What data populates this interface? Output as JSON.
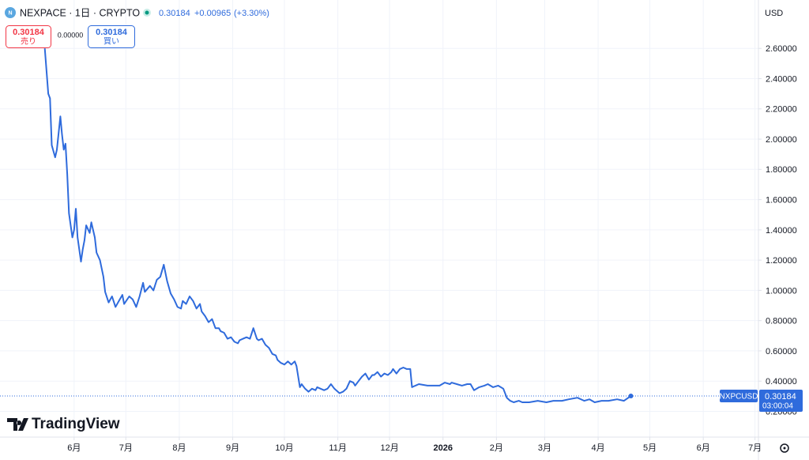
{
  "header": {
    "symbol": "NEXPACE · 1日 · CRYPTO",
    "last": "0.30184",
    "change": "+0.00965",
    "change_pct": "(+3.30%)",
    "sell_price": "0.30184",
    "sell_label": "売り",
    "spread": "0.00000",
    "buy_price": "0.30184",
    "buy_label": "買い",
    "currency": "USD",
    "brand": "TradingView",
    "countdown": "03:00:04"
  },
  "chart_data": {
    "type": "line",
    "grid": true,
    "xlim": [
      0,
      440
    ],
    "ylim": [
      0.03,
      2.92
    ],
    "xticks": [
      {
        "value": 43,
        "label": "6月"
      },
      {
        "value": 73,
        "label": "7月"
      },
      {
        "value": 104,
        "label": "8月"
      },
      {
        "value": 135,
        "label": "9月"
      },
      {
        "value": 165,
        "label": "10月"
      },
      {
        "value": 196,
        "label": "11月"
      },
      {
        "value": 226,
        "label": "12月"
      },
      {
        "value": 257,
        "label": "2026"
      },
      {
        "value": 288,
        "label": "2月"
      },
      {
        "value": 316,
        "label": "3月"
      },
      {
        "value": 347,
        "label": "4月"
      },
      {
        "value": 377,
        "label": "5月"
      },
      {
        "value": 408,
        "label": "6月"
      },
      {
        "value": 438,
        "label": "7月"
      }
    ],
    "yticks": [
      {
        "value": 0.2,
        "label": "0.20000"
      },
      {
        "value": 0.4,
        "label": "0.40000"
      },
      {
        "value": 0.6,
        "label": "0.60000"
      },
      {
        "value": 0.8,
        "label": "0.80000"
      },
      {
        "value": 1.0,
        "label": "1.00000"
      },
      {
        "value": 1.2,
        "label": "1.20000"
      },
      {
        "value": 1.4,
        "label": "1.40000"
      },
      {
        "value": 1.6,
        "label": "1.60000"
      },
      {
        "value": 1.8,
        "label": "1.80000"
      },
      {
        "value": 2.0,
        "label": "2.00000"
      },
      {
        "value": 2.2,
        "label": "2.20000"
      },
      {
        "value": 2.4,
        "label": "2.40000"
      },
      {
        "value": 2.6,
        "label": "2.60000"
      }
    ],
    "series": [
      {
        "name": "NXPCUSD",
        "color": "#2f6bdc",
        "x": [
          26,
          28,
          29,
          30,
          32,
          33,
          35,
          36,
          37,
          38,
          39,
          40,
          42,
          43,
          44,
          45,
          47,
          48,
          49,
          50,
          52,
          53,
          55,
          56,
          58,
          60,
          61,
          63,
          65,
          67,
          69,
          71,
          72,
          75,
          77,
          79,
          81,
          83,
          84,
          87,
          89,
          91,
          93,
          95,
          97,
          99,
          101,
          103,
          105,
          106,
          108,
          110,
          112,
          114,
          116,
          117,
          119,
          121,
          123,
          125,
          127,
          128,
          130,
          132,
          134,
          136,
          138,
          139,
          141,
          143,
          145,
          147,
          149,
          150,
          152,
          154,
          156,
          158,
          160,
          161,
          163,
          165,
          167,
          169,
          171,
          172,
          174,
          175,
          177,
          179,
          181,
          183,
          184,
          186,
          188,
          190,
          192,
          194,
          195,
          197,
          199,
          201,
          203,
          205,
          206,
          208,
          210,
          212,
          214,
          216,
          217,
          219,
          221,
          223,
          225,
          227,
          228,
          230,
          232,
          234,
          236,
          238,
          239,
          241,
          243,
          248,
          252,
          255,
          258,
          261,
          262,
          265,
          268,
          271,
          273,
          275,
          278,
          281,
          283,
          286,
          289,
          292,
          294,
          296,
          298,
          301,
          303,
          307,
          312,
          317,
          321,
          326,
          330,
          335,
          339,
          342,
          345,
          349,
          353,
          358,
          362,
          366
        ],
        "values": [
          2.6,
          2.3,
          2.27,
          1.96,
          1.88,
          1.93,
          2.15,
          2.03,
          1.93,
          1.97,
          1.77,
          1.51,
          1.35,
          1.4,
          1.54,
          1.35,
          1.19,
          1.27,
          1.33,
          1.43,
          1.38,
          1.45,
          1.35,
          1.25,
          1.2,
          1.09,
          0.99,
          0.92,
          0.96,
          0.89,
          0.93,
          0.97,
          0.91,
          0.96,
          0.94,
          0.89,
          0.96,
          1.05,
          0.99,
          1.03,
          1.0,
          1.07,
          1.09,
          1.17,
          1.06,
          0.98,
          0.94,
          0.89,
          0.88,
          0.93,
          0.91,
          0.96,
          0.93,
          0.88,
          0.91,
          0.86,
          0.83,
          0.79,
          0.81,
          0.75,
          0.75,
          0.73,
          0.72,
          0.68,
          0.69,
          0.66,
          0.65,
          0.67,
          0.68,
          0.69,
          0.68,
          0.75,
          0.68,
          0.67,
          0.68,
          0.64,
          0.62,
          0.58,
          0.57,
          0.54,
          0.52,
          0.51,
          0.53,
          0.51,
          0.53,
          0.5,
          0.36,
          0.38,
          0.35,
          0.33,
          0.35,
          0.34,
          0.36,
          0.35,
          0.34,
          0.35,
          0.38,
          0.35,
          0.34,
          0.32,
          0.33,
          0.35,
          0.4,
          0.39,
          0.37,
          0.4,
          0.43,
          0.45,
          0.41,
          0.44,
          0.44,
          0.46,
          0.43,
          0.45,
          0.44,
          0.46,
          0.48,
          0.45,
          0.48,
          0.49,
          0.48,
          0.48,
          0.36,
          0.37,
          0.38,
          0.37,
          0.37,
          0.37,
          0.39,
          0.38,
          0.39,
          0.38,
          0.37,
          0.38,
          0.38,
          0.34,
          0.36,
          0.37,
          0.38,
          0.36,
          0.37,
          0.35,
          0.29,
          0.27,
          0.26,
          0.27,
          0.26,
          0.26,
          0.27,
          0.26,
          0.27,
          0.27,
          0.28,
          0.29,
          0.27,
          0.28,
          0.26,
          0.27,
          0.27,
          0.28,
          0.27,
          0.30184
        ]
      }
    ]
  }
}
